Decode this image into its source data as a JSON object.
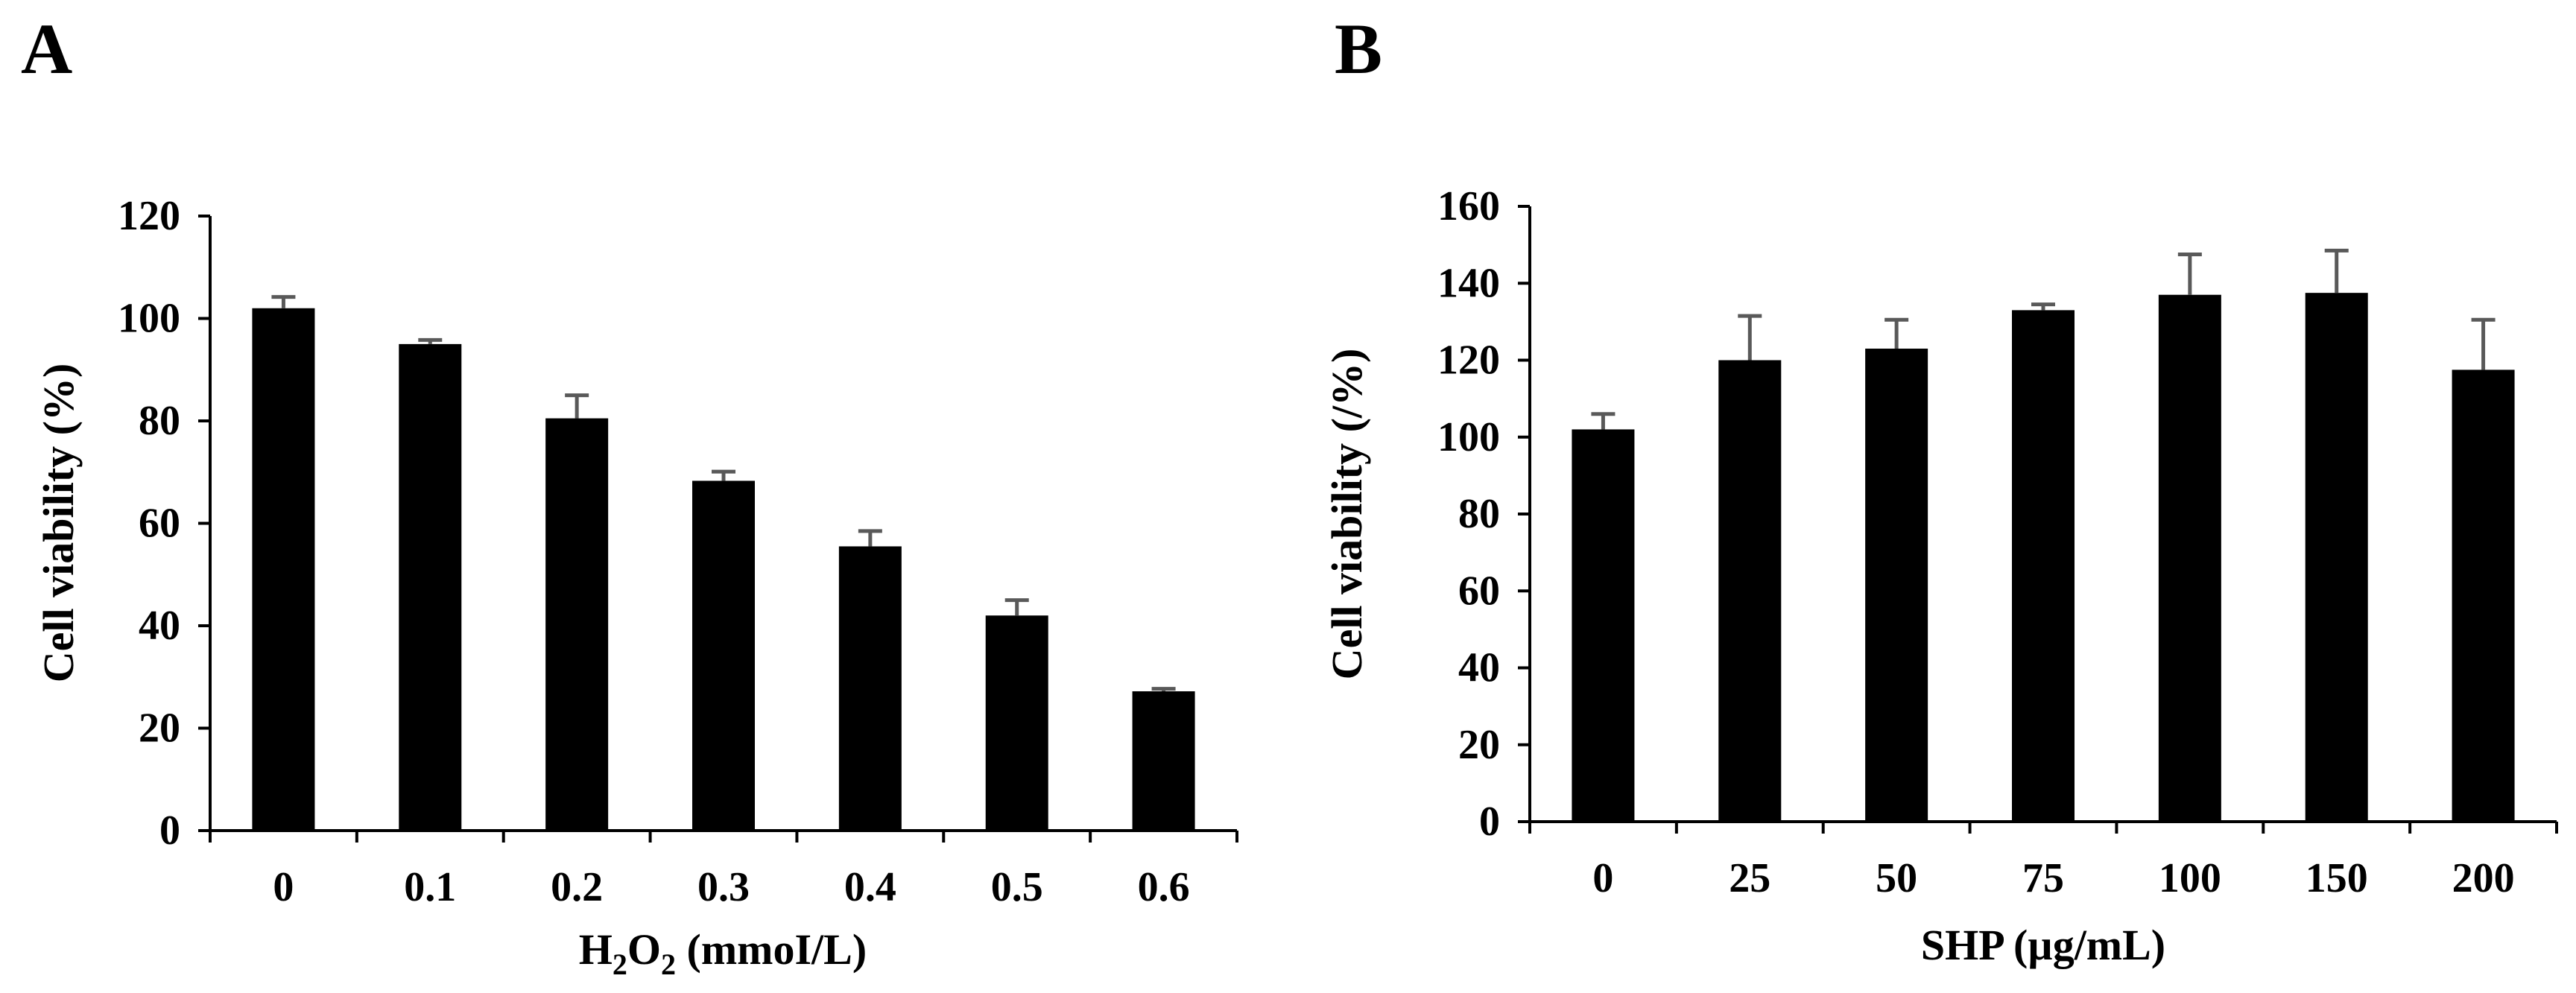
{
  "chart_data": [
    {
      "panel_label": "A",
      "type": "bar",
      "categories": [
        "0",
        "0.1",
        "0.2",
        "0.3",
        "0.4",
        "0.5",
        "0.6"
      ],
      "values": [
        102,
        95,
        80.5,
        68.3,
        55.5,
        42,
        27.2
      ],
      "errors": [
        2.2,
        0.8,
        4.5,
        1.8,
        3.0,
        3.0,
        0.5
      ],
      "xlabel": "H2O2 (mmoI/L)",
      "xlabel_parts": {
        "h": "H",
        "sub1": "2",
        "o": "O",
        "sub2": "2",
        "rest": " (mmoI/L)"
      },
      "ylabel": "Cell viability (%)",
      "ylim": [
        0,
        120
      ],
      "yticks": [
        "0",
        "20",
        "40",
        "60",
        "80",
        "100",
        "120"
      ],
      "bar_color": "#000000",
      "error_color": "#595959",
      "grid": false
    },
    {
      "panel_label": "B",
      "type": "bar",
      "categories": [
        "0",
        "25",
        "50",
        "75",
        "100",
        "150",
        "200"
      ],
      "values": [
        102,
        120,
        123,
        133,
        137,
        137.5,
        117.5
      ],
      "errors": [
        4.0,
        11.5,
        7.5,
        1.5,
        10.5,
        11.0,
        13.0
      ],
      "xlabel": "SHP (µg/mL)",
      "ylabel": "Cell viability (/%)",
      "ylim": [
        0,
        160
      ],
      "yticks": [
        "0",
        "20",
        "40",
        "60",
        "80",
        "100",
        "120",
        "140",
        "160"
      ],
      "bar_color": "#000000",
      "error_color": "#595959",
      "grid": false
    }
  ]
}
